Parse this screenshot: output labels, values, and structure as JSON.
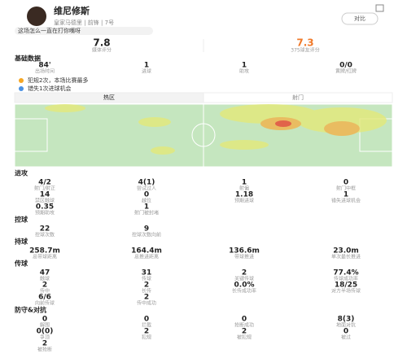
{
  "header": {
    "name": "维尼修斯",
    "team_info": "皇家马德里 | 前锋 | 7号",
    "compare_button": "对比",
    "comment": "这场怎么一直在打你嘴呀"
  },
  "ratings": [
    {
      "value": "7.8",
      "label": "媒体评分"
    },
    {
      "value": "7.3",
      "label": "375球友评分"
    }
  ],
  "basic": {
    "title": "基础数据",
    "stats": [
      {
        "value": "84'",
        "label": "出场时间"
      },
      {
        "value": "1",
        "label": "进球"
      },
      {
        "value": "1",
        "label": "助攻"
      },
      {
        "value": "0/0",
        "label": "黄牌/红牌"
      }
    ],
    "notes": [
      "犯规2次，本场比赛最多",
      "错失1次进球机会"
    ]
  },
  "tabs": [
    "热区",
    "射门"
  ],
  "sections": [
    {
      "title": "进攻",
      "stats": [
        {
          "value": "4/2",
          "label": "射门/射正"
        },
        {
          "value": "4(1)",
          "label": "尝试过人"
        },
        {
          "value": "1",
          "label": "射偏"
        },
        {
          "value": "0",
          "label": "射门中框"
        },
        {
          "value": "14",
          "label": "禁区触球"
        },
        {
          "value": "0",
          "label": "越位"
        },
        {
          "value": "1.18",
          "label": "预期进球"
        },
        {
          "value": "1",
          "label": "错失进球机会"
        },
        {
          "value": "0.35",
          "label": "预期助攻"
        },
        {
          "value": "1",
          "label": "射门被封堵"
        }
      ]
    },
    {
      "title": "控球",
      "stats": [
        {
          "value": "22",
          "label": "控球次数"
        },
        {
          "value": "9",
          "label": "控球次数向前"
        }
      ]
    },
    {
      "title": "持球",
      "stats": [
        {
          "value": "258.7m",
          "label": "总带球距离"
        },
        {
          "value": "164.4m",
          "label": "总推进距离"
        },
        {
          "value": "136.6m",
          "label": "带球推进"
        },
        {
          "value": "23.0m",
          "label": "单次最长推进"
        }
      ]
    },
    {
      "title": "传球",
      "stats": [
        {
          "value": "47",
          "label": "触球"
        },
        {
          "value": "31",
          "label": "传球"
        },
        {
          "value": "2",
          "label": "关键传球"
        },
        {
          "value": "77.4%",
          "label": "传球成功率"
        },
        {
          "value": "2",
          "label": "传中"
        },
        {
          "value": "2",
          "label": "长传"
        },
        {
          "value": "0.0%",
          "label": "长传成功率"
        },
        {
          "value": "18/25",
          "label": "对方半场传球"
        },
        {
          "value": "6/6",
          "label": "向前传球"
        },
        {
          "value": "2",
          "label": "传中成功"
        }
      ]
    },
    {
      "title": "防守&对抗",
      "stats": [
        {
          "value": "0",
          "label": "解围"
        },
        {
          "value": "0",
          "label": "拦截"
        },
        {
          "value": "0",
          "label": "抢断成功"
        },
        {
          "value": "8(3)",
          "label": "地面对抗"
        },
        {
          "value": "0(0)",
          "label": "争顶"
        },
        {
          "value": "2",
          "label": "犯规"
        },
        {
          "value": "2",
          "label": "被犯规"
        },
        {
          "value": "0",
          "label": "被过"
        },
        {
          "value": "2",
          "label": "被抢断"
        }
      ]
    }
  ]
}
